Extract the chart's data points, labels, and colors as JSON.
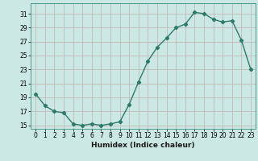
{
  "x": [
    0,
    1,
    2,
    3,
    4,
    5,
    6,
    7,
    8,
    9,
    10,
    11,
    12,
    13,
    14,
    15,
    16,
    17,
    18,
    19,
    20,
    21,
    22,
    23
  ],
  "y": [
    19.5,
    17.8,
    17.0,
    16.8,
    15.2,
    15.0,
    15.2,
    15.0,
    15.2,
    15.5,
    18.0,
    21.2,
    24.2,
    26.2,
    27.5,
    29.0,
    29.5,
    31.2,
    31.0,
    30.2,
    29.8,
    30.0,
    27.2,
    23.0
  ],
  "xlabel": "Humidex (Indice chaleur)",
  "line_color": "#2d7a6b",
  "bg_color": "#cce8e4",
  "grid_color": "#b0d0cc",
  "ylim": [
    14.5,
    32.5
  ],
  "xlim": [
    -0.5,
    23.5
  ],
  "yticks": [
    15,
    17,
    19,
    21,
    23,
    25,
    27,
    29,
    31
  ],
  "xticks": [
    0,
    1,
    2,
    3,
    4,
    5,
    6,
    7,
    8,
    9,
    10,
    11,
    12,
    13,
    14,
    15,
    16,
    17,
    18,
    19,
    20,
    21,
    22,
    23
  ],
  "marker": "D",
  "marker_size": 2.2,
  "line_width": 1.0
}
